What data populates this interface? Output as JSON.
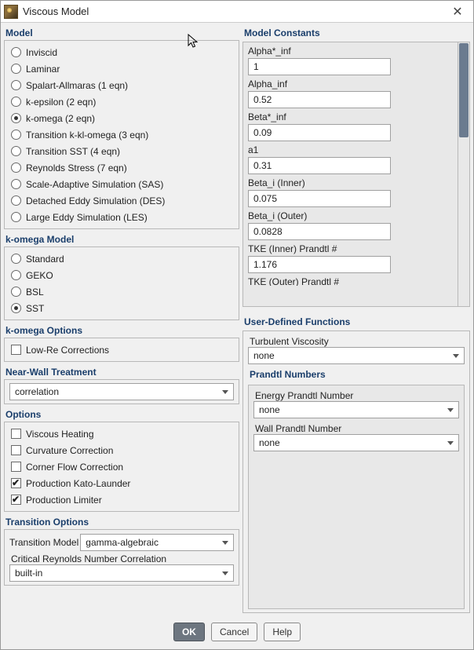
{
  "titlebar": {
    "title": "Viscous Model",
    "close_glyph": "✕"
  },
  "model": {
    "title": "Model",
    "items": [
      {
        "label": "Inviscid",
        "checked": false
      },
      {
        "label": "Laminar",
        "checked": false
      },
      {
        "label": "Spalart-Allmaras (1 eqn)",
        "checked": false
      },
      {
        "label": "k-epsilon (2 eqn)",
        "checked": false
      },
      {
        "label": "k-omega (2 eqn)",
        "checked": true
      },
      {
        "label": "Transition k-kl-omega (3 eqn)",
        "checked": false
      },
      {
        "label": "Transition SST (4 eqn)",
        "checked": false
      },
      {
        "label": "Reynolds Stress (7 eqn)",
        "checked": false
      },
      {
        "label": "Scale-Adaptive Simulation (SAS)",
        "checked": false
      },
      {
        "label": "Detached Eddy Simulation (DES)",
        "checked": false
      },
      {
        "label": "Large Eddy Simulation (LES)",
        "checked": false
      }
    ]
  },
  "komega_model": {
    "title": "k-omega Model",
    "items": [
      {
        "label": "Standard",
        "checked": false
      },
      {
        "label": "GEKO",
        "checked": false
      },
      {
        "label": "BSL",
        "checked": false
      },
      {
        "label": "SST",
        "checked": true
      }
    ]
  },
  "komega_options": {
    "title": "k-omega Options",
    "items": [
      {
        "label": "Low-Re Corrections",
        "checked": false
      }
    ]
  },
  "near_wall": {
    "title": "Near-Wall Treatment",
    "value": "correlation"
  },
  "options": {
    "title": "Options",
    "items": [
      {
        "label": "Viscous Heating",
        "checked": false
      },
      {
        "label": "Curvature Correction",
        "checked": false
      },
      {
        "label": "Corner Flow Correction",
        "checked": false
      },
      {
        "label": "Production Kato-Launder",
        "checked": true
      },
      {
        "label": "Production Limiter",
        "checked": true
      }
    ]
  },
  "transition": {
    "title": "Transition Options",
    "model_label": "Transition Model",
    "model_value": "gamma-algebraic",
    "crit_label": "Critical Reynolds Number Correlation",
    "crit_value": "built-in"
  },
  "constants": {
    "title": "Model Constants",
    "items": [
      {
        "label": "Alpha*_inf",
        "value": "1"
      },
      {
        "label": "Alpha_inf",
        "value": "0.52"
      },
      {
        "label": "Beta*_inf",
        "value": "0.09"
      },
      {
        "label": "a1",
        "value": "0.31"
      },
      {
        "label": "Beta_i (Inner)",
        "value": "0.075"
      },
      {
        "label": "Beta_i (Outer)",
        "value": "0.0828"
      },
      {
        "label": "TKE (Inner) Prandtl #",
        "value": "1.176"
      }
    ],
    "cutoff_label": "TKE (Outer) Prandtl #"
  },
  "udf": {
    "title": "User-Defined Functions",
    "turb_label": "Turbulent Viscosity",
    "turb_value": "none"
  },
  "prandtl": {
    "title": "Prandtl Numbers",
    "items": [
      {
        "label": "Energy Prandtl Number",
        "value": "none"
      },
      {
        "label": "Wall Prandtl Number",
        "value": "none"
      }
    ]
  },
  "footer": {
    "ok": "OK",
    "cancel": "Cancel",
    "help": "Help"
  },
  "colors": {
    "heading": "#1a3e6b",
    "border": "#b8b8b8",
    "panel_bg": "#f0f0f0",
    "inset_bg": "#e8e8e8",
    "scroll_thumb": "#6b7b8f"
  }
}
